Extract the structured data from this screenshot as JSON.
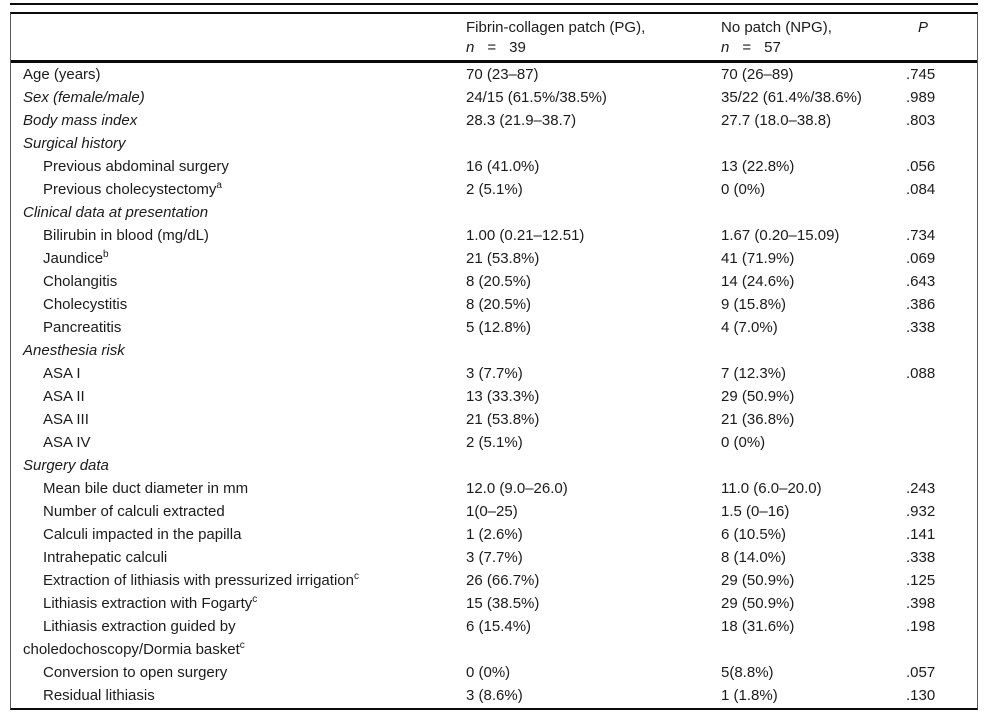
{
  "table": {
    "header": {
      "pg": {
        "line1": "Fibrin-collagen patch (PG),",
        "n": "n",
        "eq": "=",
        "count": "39"
      },
      "npg": {
        "line1": "No patch (NPG),",
        "n": "n",
        "eq": "=",
        "count": "57"
      },
      "p_label": "P"
    },
    "rows": [
      {
        "label": "Age (years)",
        "italic": false,
        "indent": 0,
        "pg": "70 (23–87)",
        "npg": "70 (26–89)",
        "p": ".745"
      },
      {
        "label": "Sex (female/male)",
        "italic": true,
        "indent": 0,
        "pg": "24/15 (61.5%/38.5%)",
        "npg": "35/22 (61.4%/38.6%)",
        "p": ".989"
      },
      {
        "label": "Body mass index",
        "italic": true,
        "indent": 0,
        "pg": "28.3 (21.9–38.7)",
        "npg": "27.7 (18.0–38.8)",
        "p": ".803"
      },
      {
        "label": "Surgical history",
        "italic": true,
        "indent": 0,
        "pg": "",
        "npg": "",
        "p": ""
      },
      {
        "label": "Previous abdominal surgery",
        "italic": false,
        "indent": 1,
        "pg": "16 (41.0%)",
        "npg": "13 (22.8%)",
        "p": ".056"
      },
      {
        "label": "Previous cholecystectomy",
        "sup": "a",
        "italic": false,
        "indent": 1,
        "pg": "2 (5.1%)",
        "npg": "0 (0%)",
        "p": ".084"
      },
      {
        "label": "Clinical data at presentation",
        "italic": true,
        "indent": 0,
        "pg": "",
        "npg": "",
        "p": ""
      },
      {
        "label": "Bilirubin in blood (mg/dL)",
        "italic": false,
        "indent": 1,
        "pg": "1.00 (0.21–12.51)",
        "npg": "1.67 (0.20–15.09)",
        "p": ".734"
      },
      {
        "label": "Jaundice",
        "sup": "b",
        "italic": false,
        "indent": 1,
        "pg": "21 (53.8%)",
        "npg": "41 (71.9%)",
        "p": ".069"
      },
      {
        "label": "Cholangitis",
        "italic": false,
        "indent": 1,
        "pg": "8 (20.5%)",
        "npg": "14 (24.6%)",
        "p": ".643"
      },
      {
        "label": "Cholecystitis",
        "italic": false,
        "indent": 1,
        "pg": "8 (20.5%)",
        "npg": "9 (15.8%)",
        "p": ".386"
      },
      {
        "label": "Pancreatitis",
        "italic": false,
        "indent": 1,
        "pg": "5 (12.8%)",
        "npg": "4 (7.0%)",
        "p": ".338"
      },
      {
        "label": "Anesthesia risk",
        "italic": true,
        "indent": 0,
        "pg": "",
        "npg": "",
        "p": ""
      },
      {
        "label": "ASA I",
        "italic": false,
        "indent": 1,
        "pg": "3 (7.7%)",
        "npg": "7 (12.3%)",
        "p": ".088"
      },
      {
        "label": "ASA II",
        "italic": false,
        "indent": 1,
        "pg": "13 (33.3%)",
        "npg": "29 (50.9%)",
        "p": ""
      },
      {
        "label": "ASA III",
        "italic": false,
        "indent": 1,
        "pg": "21 (53.8%)",
        "npg": "21 (36.8%)",
        "p": ""
      },
      {
        "label": "ASA IV",
        "italic": false,
        "indent": 1,
        "pg": "2 (5.1%)",
        "npg": "0 (0%)",
        "p": ""
      },
      {
        "label": "Surgery data",
        "italic": true,
        "indent": 0,
        "pg": "",
        "npg": "",
        "p": ""
      },
      {
        "label": "Mean bile duct diameter in mm",
        "italic": false,
        "indent": 1,
        "pg": "12.0 (9.0–26.0)",
        "npg": "11.0 (6.0–20.0)",
        "p": ".243"
      },
      {
        "label": "Number of calculi extracted",
        "italic": false,
        "indent": 1,
        "pg": "1(0–25)",
        "npg": "1.5 (0–16)",
        "p": ".932"
      },
      {
        "label": "Calculi impacted in the papilla",
        "italic": false,
        "indent": 1,
        "pg": "1 (2.6%)",
        "npg": "6 (10.5%)",
        "p": ".141"
      },
      {
        "label": "Intrahepatic calculi",
        "italic": false,
        "indent": 1,
        "pg": "3 (7.7%)",
        "npg": "8 (14.0%)",
        "p": ".338"
      },
      {
        "label": "Extraction of lithiasis with pressurized irrigation",
        "sup": "c",
        "italic": false,
        "indent": 1,
        "pg": "26 (66.7%)",
        "npg": "29 (50.9%)",
        "p": ".125"
      },
      {
        "label": "Lithiasis extraction with Fogarty",
        "sup": "c",
        "italic": false,
        "indent": 1,
        "pg": "15 (38.5%)",
        "npg": "29 (50.9%)",
        "p": ".398"
      },
      {
        "label": "Lithiasis extraction guided by",
        "line2": "choledochoscopy/Dormia basket",
        "line2_sup": "c",
        "italic": false,
        "indent": 1,
        "pg": "6 (15.4%)",
        "npg": "18 (31.6%)",
        "p": ".198"
      },
      {
        "label": "Conversion to open surgery",
        "italic": false,
        "indent": 1,
        "pg": "0 (0%)",
        "npg": "5(8.8%)",
        "p": ".057"
      },
      {
        "label": "Residual lithiasis",
        "italic": false,
        "indent": 1,
        "pg": "3 (8.6%)",
        "npg": "1 (1.8%)",
        "p": ".130"
      }
    ]
  }
}
